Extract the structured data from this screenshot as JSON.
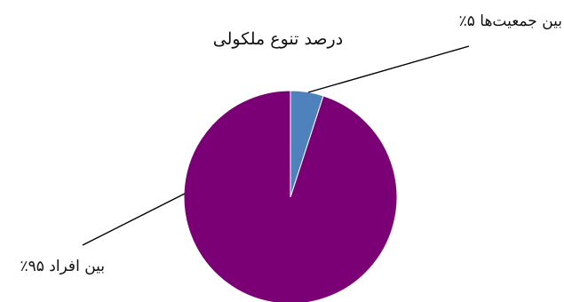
{
  "chart_data": {
    "type": "pie",
    "title": "درصد تنوع ملکولی",
    "start_angle_deg": 0,
    "direction": "clockwise",
    "slices": [
      {
        "label": "بین جمعیت‌ها ۵٪",
        "value": 5,
        "color": "#4F81BD"
      },
      {
        "label": "بین افراد ۹۵٪",
        "value": 95,
        "color": "#7B0076"
      }
    ],
    "label_style": "leader-lines",
    "legend": "none"
  }
}
